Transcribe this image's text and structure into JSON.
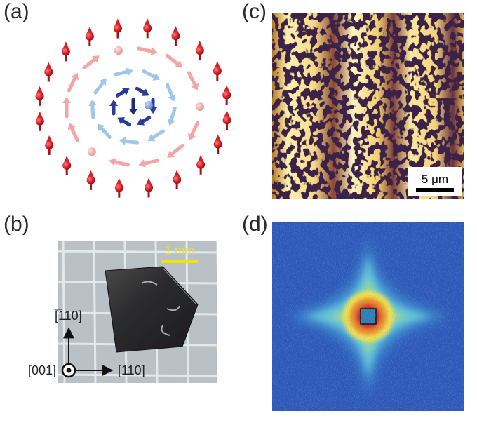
{
  "figure": {
    "panel_labels": [
      "(a)",
      "(b)",
      "(c)",
      "(d)"
    ]
  },
  "panel_a": {
    "colors": {
      "up_spin": "#d81f26",
      "light_pink": "#f2a6a6",
      "light_blue": "#9fc7ea",
      "dark_blue": "#2c3a98",
      "mid_blue": "#6f8ed3"
    }
  },
  "panel_b": {
    "scale_bar": "1 mm",
    "scale_color": "#f2e600",
    "axis_up": "[̅110]",
    "axis_right": "[110]",
    "axis_out": "[001]",
    "background": "#b9c1c7",
    "grid_color": "#dfe5e8"
  },
  "panel_c": {
    "scale_bar": "5 μm",
    "colors": {
      "bright": "#fff3c2",
      "mid": "#d49a2a",
      "dark": "#3d2146"
    }
  },
  "panel_d": {
    "colors": {
      "outer": "#2d58b7",
      "cyan": "#63c7d8",
      "yellow": "#f6e34a",
      "orange": "#f28b24",
      "red": "#d91f26"
    }
  }
}
